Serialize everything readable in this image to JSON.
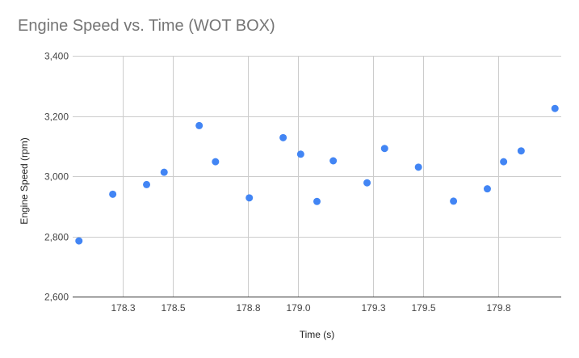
{
  "chart_data": {
    "type": "scatter",
    "title": "Engine Speed vs. Time (WOT BOX)",
    "xlabel": "Time (s)",
    "ylabel": "Engine Speed (rpm)",
    "xlim": [
      178.1,
      180.05
    ],
    "ylim": [
      2600,
      3400
    ],
    "x_ticks": [
      178.3,
      178.5,
      178.8,
      179.0,
      179.3,
      179.5,
      179.8
    ],
    "x_tick_labels": [
      "178.3",
      "178.5",
      "178.8",
      "179.0",
      "179.3",
      "179.5",
      "179.8"
    ],
    "y_ticks": [
      2600,
      2800,
      3000,
      3200,
      3400
    ],
    "y_tick_labels": [
      "2,600",
      "2,800",
      "3,000",
      "3,200",
      "3,400"
    ],
    "grid": true,
    "legend": "none",
    "color": "#4285f4",
    "points": [
      {
        "x": 178.125,
        "y": 2785
      },
      {
        "x": 178.26,
        "y": 2940
      },
      {
        "x": 178.395,
        "y": 2972
      },
      {
        "x": 178.465,
        "y": 3013
      },
      {
        "x": 178.605,
        "y": 3168
      },
      {
        "x": 178.67,
        "y": 3048
      },
      {
        "x": 178.805,
        "y": 2928
      },
      {
        "x": 178.94,
        "y": 3128
      },
      {
        "x": 179.01,
        "y": 3073
      },
      {
        "x": 179.075,
        "y": 2916
      },
      {
        "x": 179.14,
        "y": 3051
      },
      {
        "x": 179.275,
        "y": 2978
      },
      {
        "x": 179.345,
        "y": 3092
      },
      {
        "x": 179.48,
        "y": 3030
      },
      {
        "x": 179.62,
        "y": 2917
      },
      {
        "x": 179.755,
        "y": 2958
      },
      {
        "x": 179.82,
        "y": 3048
      },
      {
        "x": 179.89,
        "y": 3084
      },
      {
        "x": 180.025,
        "y": 3225
      }
    ]
  }
}
